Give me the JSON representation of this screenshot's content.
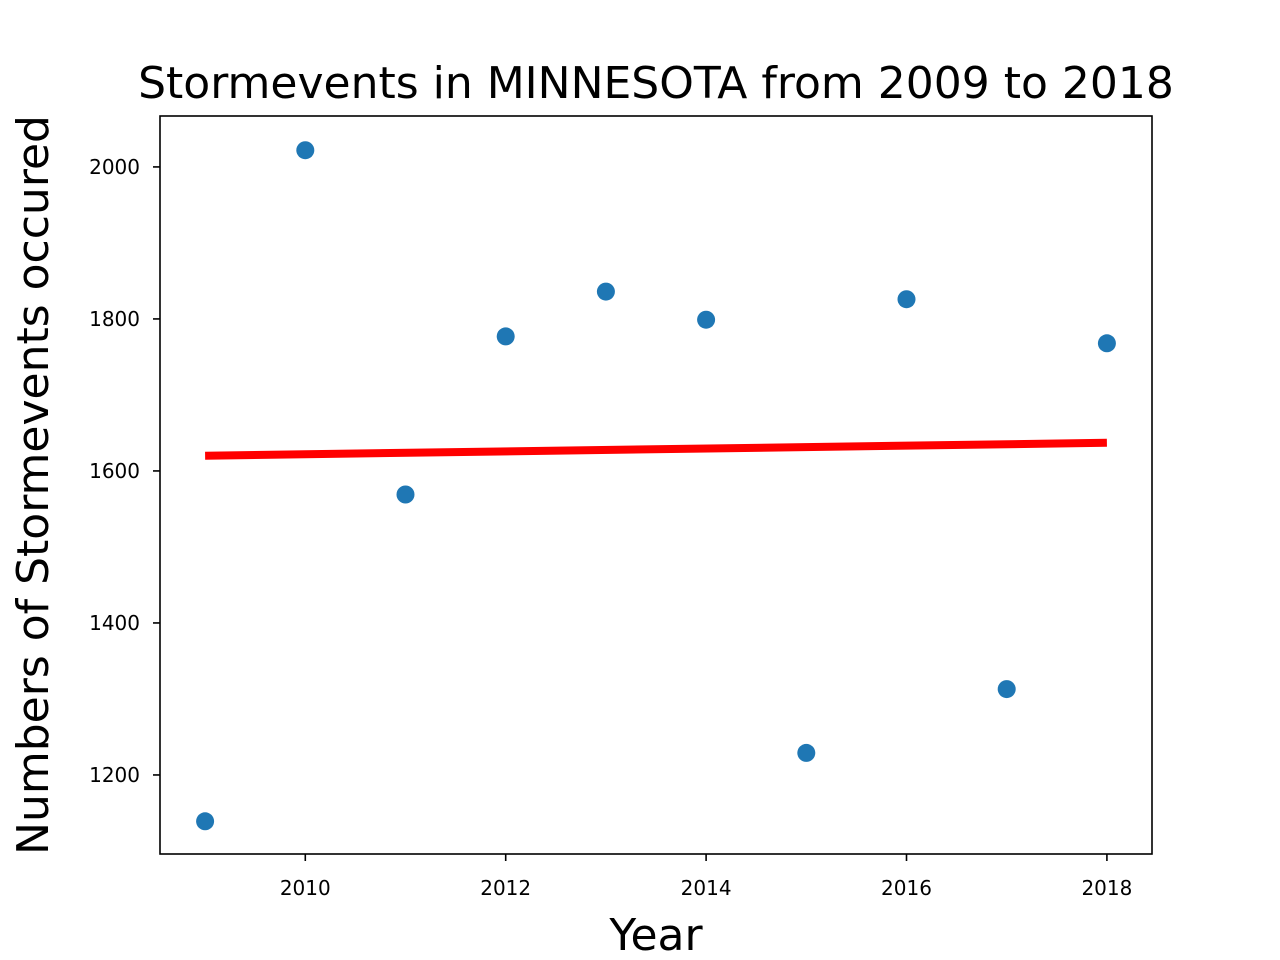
{
  "chart_data": {
    "type": "scatter",
    "title": "Stormevents in MINNESOTA from 2009 to 2018",
    "xlabel": "Year",
    "ylabel": "Numbers of Stormevents occured",
    "xlim": [
      2008.55,
      2018.45
    ],
    "ylim": [
      1096,
      2067
    ],
    "xticks": [
      2010,
      2012,
      2014,
      2016,
      2018
    ],
    "yticks": [
      1200,
      1400,
      1600,
      1800,
      2000
    ],
    "grid": false,
    "legend": "none",
    "series": [
      {
        "type": "scatter",
        "color": "#1f77b4",
        "points": [
          {
            "x": 2009,
            "y": 1139
          },
          {
            "x": 2010,
            "y": 2022
          },
          {
            "x": 2011,
            "y": 1569
          },
          {
            "x": 2012,
            "y": 1777
          },
          {
            "x": 2013,
            "y": 1836
          },
          {
            "x": 2014,
            "y": 1799
          },
          {
            "x": 2015,
            "y": 1229
          },
          {
            "x": 2016,
            "y": 1826
          },
          {
            "x": 2017,
            "y": 1313
          },
          {
            "x": 2018,
            "y": 1768
          }
        ]
      },
      {
        "type": "line",
        "color": "#ff0000",
        "points": [
          {
            "x": 2009,
            "y": 1620
          },
          {
            "x": 2018,
            "y": 1637
          }
        ]
      }
    ]
  }
}
